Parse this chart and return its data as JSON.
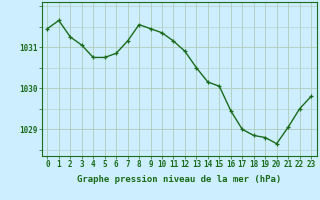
{
  "x": [
    0,
    1,
    2,
    3,
    4,
    5,
    6,
    7,
    8,
    9,
    10,
    11,
    12,
    13,
    14,
    15,
    16,
    17,
    18,
    19,
    20,
    21,
    22,
    23
  ],
  "y": [
    1031.45,
    1031.65,
    1031.25,
    1031.05,
    1030.75,
    1030.75,
    1030.85,
    1031.15,
    1031.55,
    1031.45,
    1031.35,
    1031.15,
    1030.9,
    1030.5,
    1030.15,
    1030.05,
    1029.45,
    1029.0,
    1028.85,
    1028.8,
    1028.65,
    1029.05,
    1029.5,
    1029.8
  ],
  "line_color": "#1a6b1a",
  "marker_color": "#1a6b1a",
  "bg_color": "#cceeff",
  "grid_color": "#b0ccbb",
  "axis_color": "#1a6b1a",
  "xlabel": "Graphe pression niveau de la mer (hPa)",
  "xlim": [
    -0.5,
    23.5
  ],
  "ylim": [
    1028.35,
    1032.1
  ],
  "yticks": [
    1029,
    1030,
    1031
  ],
  "xticks": [
    0,
    1,
    2,
    3,
    4,
    5,
    6,
    7,
    8,
    9,
    10,
    11,
    12,
    13,
    14,
    15,
    16,
    17,
    18,
    19,
    20,
    21,
    22,
    23
  ],
  "xlabel_fontsize": 6.5,
  "tick_fontsize": 5.5,
  "marker_size": 2.5,
  "line_width": 1.0
}
